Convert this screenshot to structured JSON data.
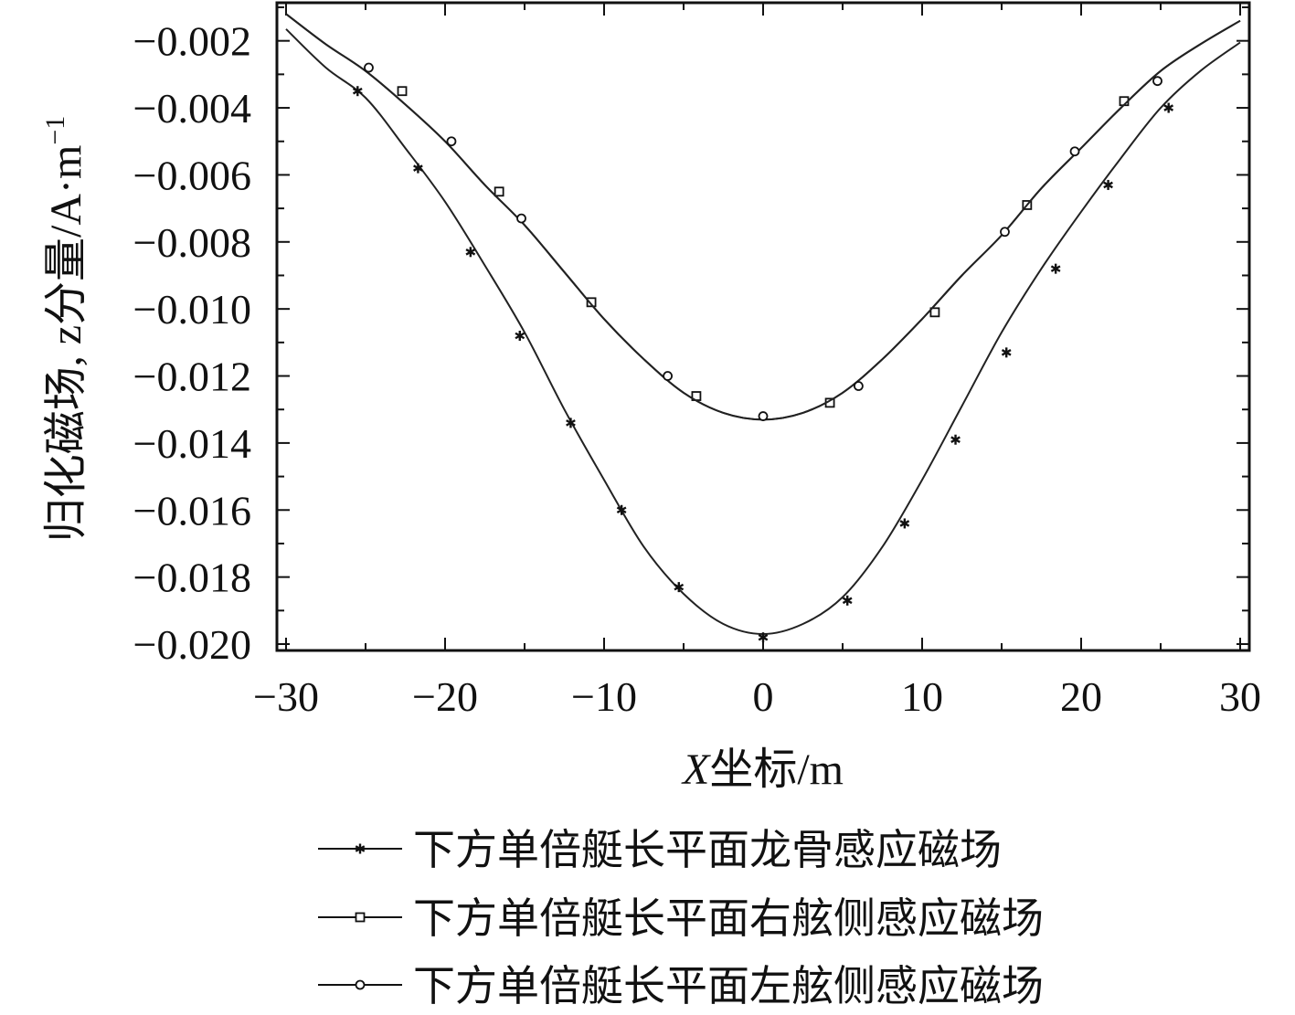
{
  "chart_data": {
    "type": "line",
    "xlabel_var": "X",
    "xlabel_rest": "坐标/m",
    "ylabel": "归化磁场, z分量/A·m",
    "ylabel_exp": "−1",
    "xlim": [
      -30,
      30
    ],
    "ylim": [
      -0.02,
      -0.001
    ],
    "x_ticks": [
      -30,
      -20,
      -10,
      0,
      10,
      20,
      30
    ],
    "x_tick_labels": [
      "−30",
      "−20",
      "−10",
      "0",
      "10",
      "20",
      "30"
    ],
    "y_ticks": [
      -0.002,
      -0.004,
      -0.006,
      -0.008,
      -0.01,
      -0.012,
      -0.014,
      -0.016,
      -0.018,
      -0.02
    ],
    "y_tick_labels": [
      "−0.002",
      "−0.004",
      "−0.006",
      "−0.008",
      "−0.010",
      "−0.012",
      "−0.014",
      "−0.016",
      "−0.018",
      "−0.020"
    ],
    "grid": false,
    "legend_position": "bottom",
    "series": [
      {
        "name": "下方单倍艇长平面龙骨感应磁场",
        "marker": "star",
        "curve": [
          [
            -30,
            -0.00165
          ],
          [
            -27.5,
            -0.0028
          ],
          [
            -25,
            -0.0037
          ],
          [
            -22.5,
            -0.0052
          ],
          [
            -20,
            -0.0068
          ],
          [
            -17.5,
            -0.0087
          ],
          [
            -15,
            -0.0107
          ],
          [
            -12.5,
            -0.013
          ],
          [
            -10,
            -0.0151
          ],
          [
            -7.5,
            -0.0171
          ],
          [
            -5,
            -0.0185
          ],
          [
            -2.5,
            -0.0194
          ],
          [
            0,
            -0.0197
          ],
          [
            2.5,
            -0.0194
          ],
          [
            5,
            -0.0186
          ],
          [
            7.5,
            -0.0171
          ],
          [
            10,
            -0.0151
          ],
          [
            12.5,
            -0.0129
          ],
          [
            15,
            -0.0107
          ],
          [
            17.5,
            -0.0088
          ],
          [
            20,
            -0.0071
          ],
          [
            22.5,
            -0.0055
          ],
          [
            25,
            -0.004
          ],
          [
            27.5,
            -0.0029
          ],
          [
            30,
            -0.00205
          ]
        ],
        "points": [
          [
            -25.5,
            -0.0035
          ],
          [
            -21.7,
            -0.0058
          ],
          [
            -18.4,
            -0.0083
          ],
          [
            -15.3,
            -0.0108
          ],
          [
            -12.1,
            -0.0134
          ],
          [
            -8.9,
            -0.016
          ],
          [
            -5.3,
            -0.0183
          ],
          [
            0,
            -0.0198
          ],
          [
            5.3,
            -0.0187
          ],
          [
            8.9,
            -0.0164
          ],
          [
            12.1,
            -0.0139
          ],
          [
            15.3,
            -0.0113
          ],
          [
            18.4,
            -0.0088
          ],
          [
            21.7,
            -0.0063
          ],
          [
            25.5,
            -0.004
          ]
        ]
      },
      {
        "name": "下方单倍艇长平面右舷侧感应磁场",
        "marker": "square",
        "curve": [
          [
            -30,
            -0.0012
          ],
          [
            -27.5,
            -0.0021
          ],
          [
            -25,
            -0.0029
          ],
          [
            -22.5,
            -0.0039
          ],
          [
            -20,
            -0.005
          ],
          [
            -17.5,
            -0.0063
          ],
          [
            -15,
            -0.0075
          ],
          [
            -12.5,
            -0.0089
          ],
          [
            -10,
            -0.0103
          ],
          [
            -7.5,
            -0.0115
          ],
          [
            -5,
            -0.0125
          ],
          [
            -2.5,
            -0.0131
          ],
          [
            0,
            -0.0133
          ],
          [
            2.5,
            -0.0131
          ],
          [
            5,
            -0.0125
          ],
          [
            7.5,
            -0.0115
          ],
          [
            10,
            -0.0103
          ],
          [
            12.5,
            -0.009
          ],
          [
            15,
            -0.0078
          ],
          [
            17.5,
            -0.0064
          ],
          [
            20,
            -0.0052
          ],
          [
            22.5,
            -0.004
          ],
          [
            25,
            -0.0029
          ],
          [
            27.5,
            -0.0021
          ],
          [
            30,
            -0.0014
          ]
        ],
        "points": [
          [
            -22.7,
            -0.0035
          ],
          [
            -16.6,
            -0.0065
          ],
          [
            -10.8,
            -0.0098
          ],
          [
            -4.2,
            -0.0126
          ],
          [
            4.2,
            -0.0128
          ],
          [
            10.8,
            -0.0101
          ],
          [
            16.6,
            -0.0069
          ],
          [
            22.7,
            -0.0038
          ]
        ]
      },
      {
        "name": "下方单倍艇长平面左舷侧感应磁场",
        "marker": "circle",
        "curve": [
          [
            -30,
            -0.0012
          ],
          [
            -27.5,
            -0.0021
          ],
          [
            -25,
            -0.0029
          ],
          [
            -22.5,
            -0.0039
          ],
          [
            -20,
            -0.005
          ],
          [
            -17.5,
            -0.0063
          ],
          [
            -15,
            -0.0075
          ],
          [
            -12.5,
            -0.0089
          ],
          [
            -10,
            -0.0103
          ],
          [
            -7.5,
            -0.0115
          ],
          [
            -5,
            -0.0125
          ],
          [
            -2.5,
            -0.0131
          ],
          [
            0,
            -0.0133
          ],
          [
            2.5,
            -0.0131
          ],
          [
            5,
            -0.0125
          ],
          [
            7.5,
            -0.0115
          ],
          [
            10,
            -0.0103
          ],
          [
            12.5,
            -0.009
          ],
          [
            15,
            -0.0078
          ],
          [
            17.5,
            -0.0064
          ],
          [
            20,
            -0.0052
          ],
          [
            22.5,
            -0.004
          ],
          [
            25,
            -0.0029
          ],
          [
            27.5,
            -0.0021
          ],
          [
            30,
            -0.0014
          ]
        ],
        "points": [
          [
            -24.8,
            -0.0028
          ],
          [
            -19.6,
            -0.005
          ],
          [
            -15.2,
            -0.0073
          ],
          [
            -6,
            -0.012
          ],
          [
            0,
            -0.0132
          ],
          [
            6,
            -0.0123
          ],
          [
            15.2,
            -0.0077
          ],
          [
            19.6,
            -0.0053
          ],
          [
            24.8,
            -0.0032
          ]
        ]
      }
    ]
  }
}
